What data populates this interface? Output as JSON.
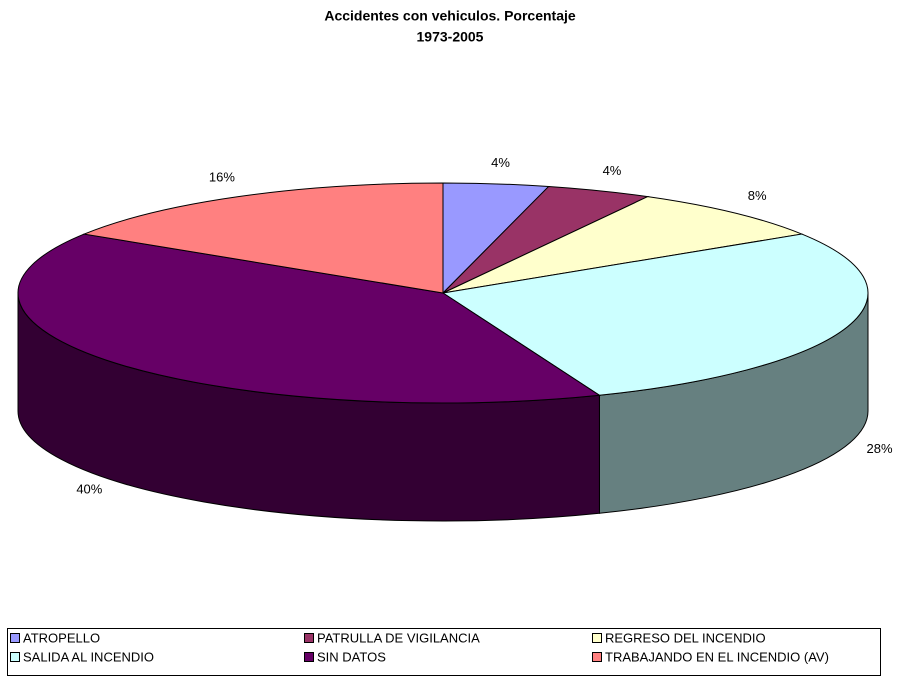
{
  "chart_data": {
    "type": "pie",
    "title": "Accidentes con vehiculos. Porcentaje",
    "subtitle": "1973-2005",
    "categories": [
      "ATROPELLO",
      "PATRULLA DE VIGILANCIA",
      "REGRESO DEL INCENDIO",
      "SALIDA AL INCENDIO",
      "SIN DATOS",
      "TRABAJANDO EN EL INCENDIO (AV)"
    ],
    "values": [
      4,
      4,
      8,
      28,
      40,
      16
    ],
    "value_labels": [
      "4%",
      "4%",
      "8%",
      "28%",
      "40%",
      "16%"
    ],
    "colors": [
      "#9999ff",
      "#993366",
      "#ffffcc",
      "#ccffff",
      "#660066",
      "#ff8080"
    ],
    "legend": "bottom"
  }
}
